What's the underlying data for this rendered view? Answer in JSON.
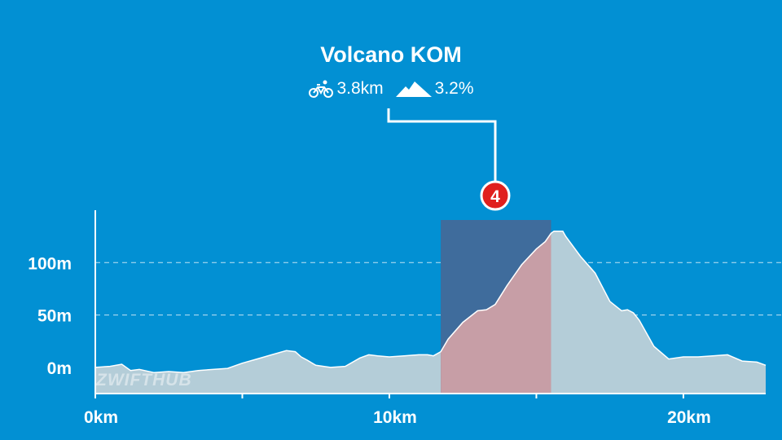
{
  "segment": {
    "name": "Volcano KOM",
    "distance": "3.8km",
    "gradient": "3.2%",
    "marker_number": "4"
  },
  "watermark": "ZWIFTHUB",
  "colors": {
    "background": "#0290d3",
    "profile_fill": "#b4cdd8",
    "segment_overlay": "#3f6c9c",
    "segment_fill": "#c79ea6",
    "marker": "#e0201e"
  },
  "chart_data": {
    "type": "area",
    "title": "Volcano KOM",
    "xlabel": "",
    "ylabel": "",
    "xlim": [
      0,
      22.8
    ],
    "ylim": [
      -25,
      150
    ],
    "x_ticks": [
      {
        "value": 0,
        "label": "0km"
      },
      {
        "value": 10,
        "label": "10km"
      },
      {
        "value": 20,
        "label": "20km"
      }
    ],
    "y_ticks": [
      {
        "value": 0,
        "label": "0m"
      },
      {
        "value": 50,
        "label": "50m"
      },
      {
        "value": 100,
        "label": "100m"
      }
    ],
    "grid": "horizontal-dashed",
    "highlight": {
      "start_km": 11.75,
      "end_km": 15.5
    },
    "x": [
      0,
      0.5,
      0.9,
      1.2,
      1.5,
      2.0,
      2.5,
      3.0,
      3.5,
      4.0,
      4.5,
      5.0,
      5.5,
      6.0,
      6.5,
      6.8,
      7.0,
      7.2,
      7.5,
      8.0,
      8.5,
      9.0,
      9.3,
      9.6,
      10.0,
      10.5,
      11.0,
      11.3,
      11.5,
      11.75,
      12.0,
      12.5,
      13.0,
      13.3,
      13.6,
      14.0,
      14.5,
      15.0,
      15.3,
      15.5,
      15.6,
      15.9,
      16.0,
      16.5,
      17.0,
      17.5,
      17.9,
      18.1,
      18.3,
      18.5,
      19.0,
      19.5,
      20.0,
      20.5,
      21.0,
      21.5,
      22.0,
      22.5,
      22.8
    ],
    "values": [
      0,
      1,
      3,
      -3,
      -2,
      -5,
      -4,
      -5,
      -3,
      -2,
      -1,
      4,
      8,
      12,
      16,
      15,
      10,
      7,
      2,
      0,
      1,
      9,
      12,
      11,
      10,
      11,
      12,
      12,
      11,
      15,
      27,
      43,
      54,
      55,
      60,
      78,
      98,
      113,
      120,
      128,
      130,
      130,
      125,
      106,
      90,
      63,
      54,
      55,
      52,
      45,
      20,
      8,
      10,
      10,
      11,
      12,
      6,
      5,
      2
    ]
  }
}
